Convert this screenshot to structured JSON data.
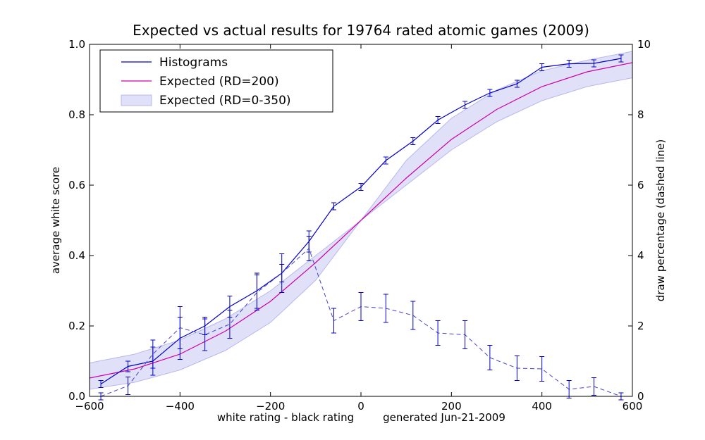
{
  "chart_data": {
    "type": "line",
    "title": "Expected vs actual results for 19764 rated atomic games (2009)",
    "xlabel": "white rating - black rating",
    "footnote": "generated Jun-21-2009",
    "ylabel": "average white score",
    "y2label": "draw percentage (dashed line)",
    "xlim": [
      -600,
      600
    ],
    "ylim": [
      0,
      1.0
    ],
    "y2lim": [
      0,
      10
    ],
    "xticks": [
      -600,
      -400,
      -200,
      0,
      200,
      400,
      600
    ],
    "xtick_labels": [
      "−600",
      "−400",
      "−200",
      "0",
      "200",
      "400",
      "600"
    ],
    "yticks": [
      0.0,
      0.2,
      0.4,
      0.6,
      0.8,
      1.0
    ],
    "ytick_labels": [
      "0.0",
      "0.2",
      "0.4",
      "0.6",
      "0.8",
      "1.0"
    ],
    "y2ticks": [
      0,
      2,
      4,
      6,
      8,
      10
    ],
    "y2tick_labels": [
      "0",
      "2",
      "4",
      "6",
      "8",
      "10"
    ],
    "grid": false,
    "legend_position": "top-left",
    "legend": [
      "Histograms",
      "Expected (RD=200)",
      "Expected (RD=0-350)"
    ],
    "colors": {
      "histograms": "#0000cc",
      "expected": "#cc00aa",
      "band_fill": "#e0e0f8",
      "band_edge": "#b8b8ee",
      "draw": "#4444cc"
    },
    "series": [
      {
        "name": "Histograms",
        "x": [
          -575,
          -515,
          -460,
          -400,
          -345,
          -290,
          -230,
          -175,
          -115,
          -60,
          0,
          55,
          115,
          170,
          230,
          285,
          345,
          400,
          460,
          515,
          575
        ],
        "y": [
          0.035,
          0.085,
          0.1,
          0.165,
          0.2,
          0.255,
          0.3,
          0.35,
          0.44,
          0.54,
          0.595,
          0.67,
          0.725,
          0.785,
          0.828,
          0.862,
          0.888,
          0.935,
          0.945,
          0.946,
          0.96
        ],
        "err": [
          0.01,
          0.015,
          0.04,
          0.06,
          0.025,
          0.03,
          0.05,
          0.025,
          0.03,
          0.01,
          0.01,
          0.01,
          0.01,
          0.01,
          0.01,
          0.01,
          0.01,
          0.01,
          0.01,
          0.01,
          0.01
        ]
      },
      {
        "name": "Expected (RD=200)",
        "x": [
          -600,
          -500,
          -400,
          -300,
          -200,
          -100,
          0,
          100,
          200,
          300,
          400,
          500,
          600
        ],
        "y": [
          0.052,
          0.078,
          0.12,
          0.185,
          0.27,
          0.38,
          0.5,
          0.62,
          0.73,
          0.815,
          0.88,
          0.922,
          0.948
        ]
      },
      {
        "name": "Expected (RD=0-350)",
        "x": [
          -600,
          -500,
          -400,
          -300,
          -200,
          -100,
          0,
          100,
          200,
          300,
          400,
          500,
          600
        ],
        "y_low": [
          0.02,
          0.04,
          0.075,
          0.13,
          0.21,
          0.33,
          0.5,
          0.6,
          0.7,
          0.78,
          0.84,
          0.88,
          0.905
        ],
        "y_high": [
          0.095,
          0.12,
          0.16,
          0.22,
          0.3,
          0.4,
          0.5,
          0.67,
          0.79,
          0.87,
          0.925,
          0.955,
          0.98
        ]
      },
      {
        "name": "draw percentage",
        "axis": "right",
        "x": [
          -575,
          -515,
          -460,
          -400,
          -345,
          -290,
          -230,
          -175,
          -115,
          -60,
          0,
          55,
          115,
          170,
          230,
          285,
          345,
          400,
          460,
          515,
          575
        ],
        "y": [
          0.0,
          0.3,
          1.2,
          1.95,
          1.75,
          2.05,
          2.95,
          3.5,
          4.2,
          2.15,
          2.55,
          2.5,
          2.3,
          1.8,
          1.75,
          1.1,
          0.8,
          0.78,
          0.2,
          0.28,
          0.0
        ],
        "err": [
          0.1,
          0.25,
          0.4,
          0.6,
          0.45,
          0.4,
          0.5,
          0.55,
          0.35,
          0.35,
          0.4,
          0.4,
          0.4,
          0.35,
          0.4,
          0.35,
          0.35,
          0.35,
          0.25,
          0.25,
          0.1
        ]
      }
    ]
  }
}
